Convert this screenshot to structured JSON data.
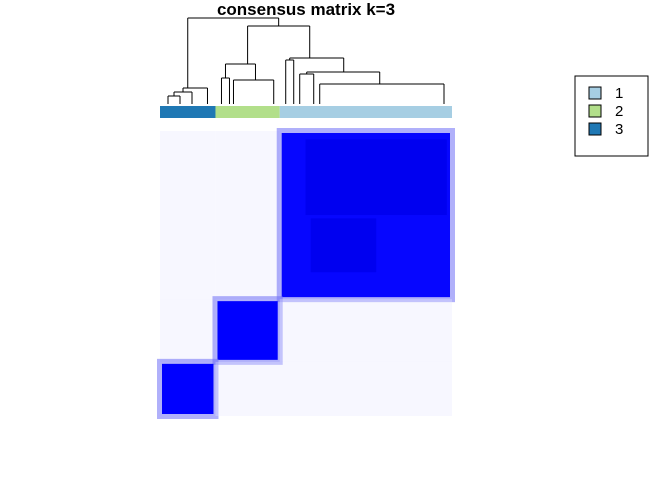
{
  "chart_data": {
    "type": "heatmap",
    "title": "consensus matrix k=3",
    "legend": {
      "placement": "right",
      "items": [
        {
          "label": "1",
          "color": "#a6cee3"
        },
        {
          "label": "2",
          "color": "#b2df8a"
        },
        {
          "label": "3",
          "color": "#1f78b4"
        }
      ]
    },
    "colors": {
      "high": "#0000ff",
      "low": "#ffffff"
    },
    "value_range": [
      0,
      1
    ],
    "column_annotation": {
      "order": [
        "3",
        "2",
        "1"
      ],
      "fractions": [
        0.19,
        0.22,
        0.59
      ]
    },
    "blocks": [
      {
        "cluster": "3",
        "consensus": 1.0
      },
      {
        "cluster": "2",
        "consensus": 1.0
      },
      {
        "cluster": "1",
        "consensus": 0.97
      }
    ]
  }
}
